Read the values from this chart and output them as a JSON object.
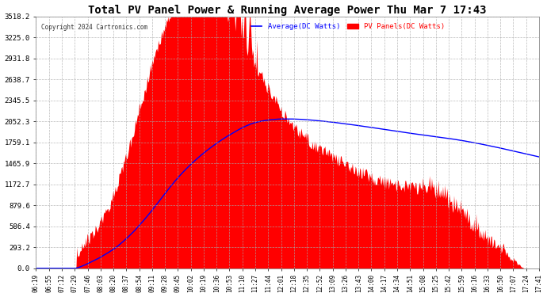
{
  "title": "Total PV Panel Power & Running Average Power Thu Mar 7 17:43",
  "copyright": "Copyright 2024 Cartronics.com",
  "legend_avg": "Average(DC Watts)",
  "legend_pv": "PV Panels(DC Watts)",
  "yticks": [
    0.0,
    293.2,
    586.4,
    879.6,
    1172.7,
    1465.9,
    1759.1,
    2052.3,
    2345.5,
    2638.7,
    2931.8,
    3225.0,
    3518.2
  ],
  "ymax": 3518.2,
  "background_color": "#ffffff",
  "fill_color": "#ff0000",
  "avg_line_color": "#0000ff",
  "grid_color": "#aaaaaa",
  "title_color": "#000000",
  "copyright_color": "#000000",
  "xtick_labels": [
    "06:19",
    "06:55",
    "07:12",
    "07:29",
    "07:46",
    "08:03",
    "08:20",
    "08:37",
    "08:54",
    "09:11",
    "09:28",
    "09:45",
    "10:02",
    "10:19",
    "10:36",
    "10:53",
    "11:10",
    "11:27",
    "11:44",
    "12:01",
    "12:18",
    "12:35",
    "12:52",
    "13:09",
    "13:26",
    "13:43",
    "14:00",
    "14:17",
    "14:34",
    "14:51",
    "15:08",
    "15:25",
    "15:42",
    "15:59",
    "16:16",
    "16:33",
    "16:50",
    "17:07",
    "17:24",
    "17:41"
  ]
}
